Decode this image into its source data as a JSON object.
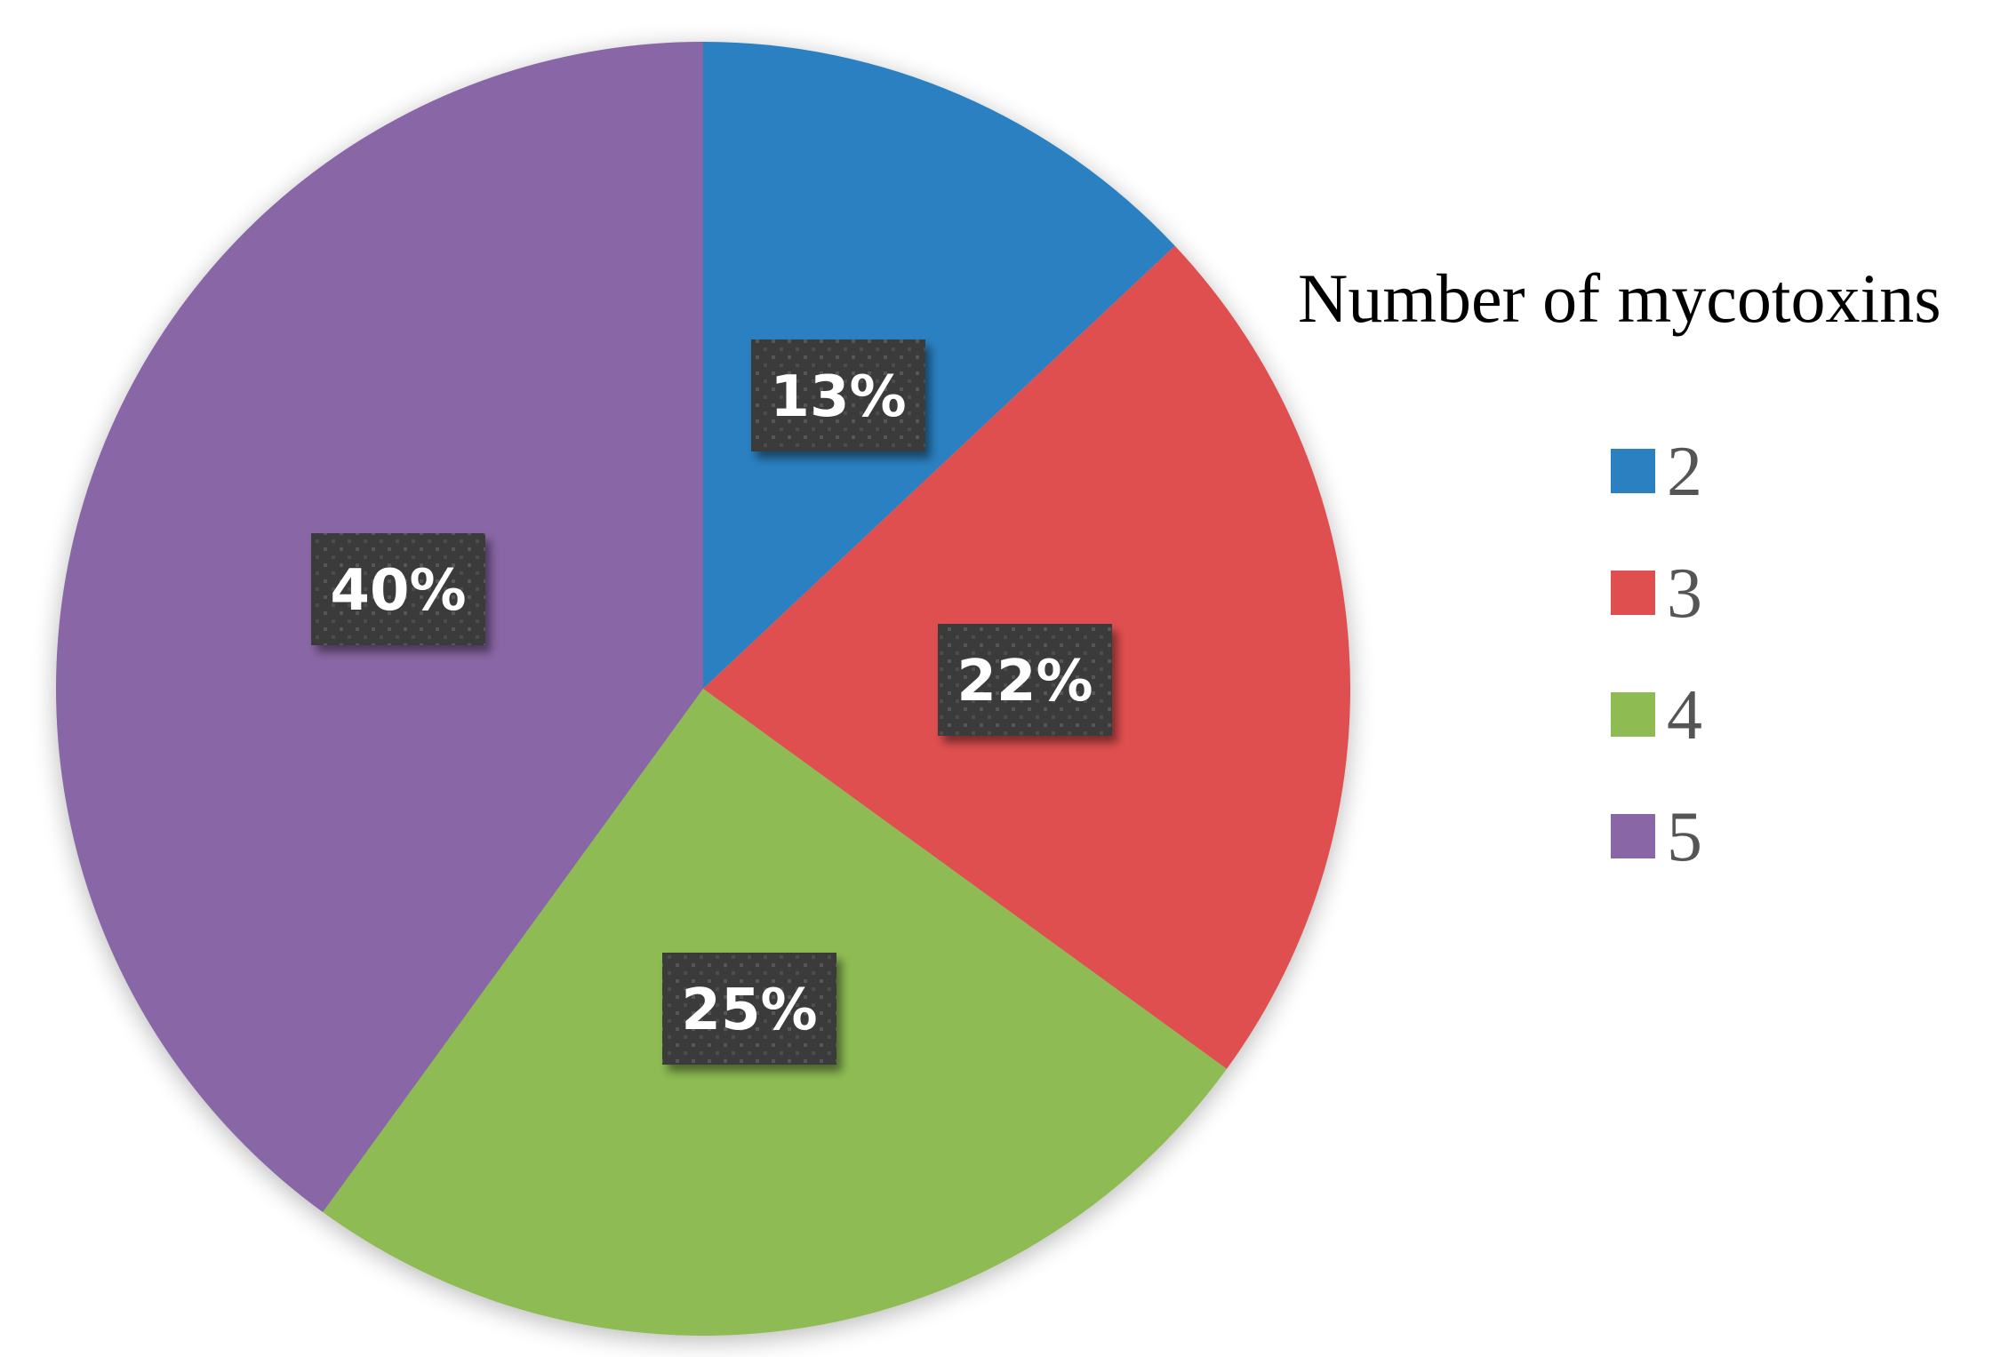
{
  "chart_data": {
    "type": "pie",
    "legend_title": "Number of mycotoxins",
    "legend_position": "right",
    "categories": [
      "2",
      "3",
      "4",
      "5"
    ],
    "values": [
      13,
      22,
      25,
      40
    ],
    "labels": [
      "13%",
      "22%",
      "25%",
      "40%"
    ],
    "colors": [
      "#2a80c0",
      "#df4f4f",
      "#8ebb52",
      "#8966a5"
    ],
    "label_box_color": "#3b3b3b"
  }
}
